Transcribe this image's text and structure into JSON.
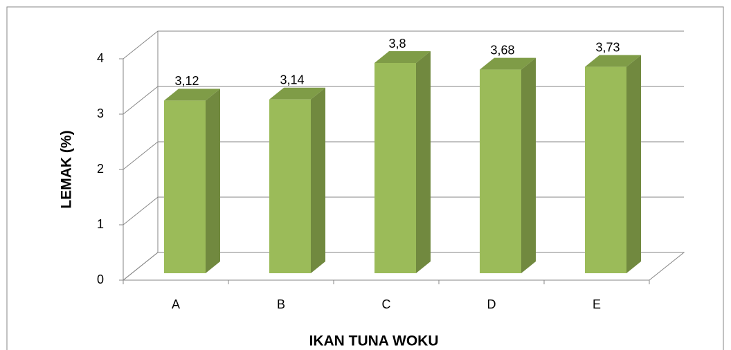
{
  "chart_data": {
    "type": "bar3d",
    "x_label": "IKAN TUNA WOKU",
    "y_label": "LEMAK  (%)",
    "categories": [
      "A",
      "B",
      "C",
      "D",
      "E"
    ],
    "values": [
      3.12,
      3.14,
      3.8,
      3.68,
      3.73
    ],
    "value_labels": [
      "3,12",
      "3,14",
      "3,8",
      "3,68",
      "3,73"
    ],
    "color": "#9bbb59",
    "ylim": [
      0,
      4
    ],
    "yticks": [
      0,
      1,
      2,
      3,
      4
    ],
    "grid": true
  }
}
